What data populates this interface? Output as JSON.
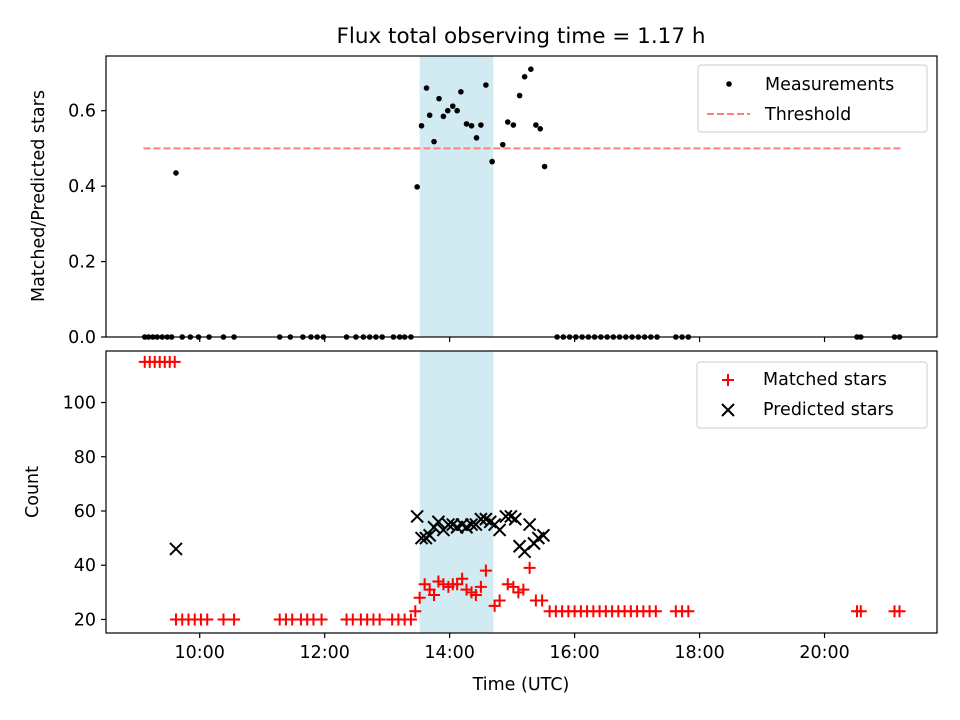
{
  "title": "Flux total observing time = 1.17 h",
  "colors": {
    "threshold": "#ff7f7f",
    "shade": "#add8e6",
    "matched": "#ff0000",
    "predicted": "#000000",
    "measurement": "#000000"
  },
  "chart_data": [
    {
      "type": "scatter",
      "xlabel": "",
      "ylabel": "Matched/Predicted stars",
      "xlim": [
        8.5,
        21.8
      ],
      "ylim": [
        0,
        0.745
      ],
      "yticks": [
        0.0,
        0.2,
        0.4,
        0.6
      ],
      "ytick_labels": [
        "0.0",
        "0.2",
        "0.4",
        "0.6"
      ],
      "shaded_span": [
        13.52,
        14.7
      ],
      "legend": {
        "position": "upper right",
        "entries": [
          "Measurements",
          "Threshold"
        ]
      },
      "threshold": {
        "name": "Threshold",
        "value": 0.5,
        "x_range": [
          9.1,
          21.25
        ]
      },
      "series": [
        {
          "name": "Measurements",
          "points": [
            [
              9.12,
              0
            ],
            [
              9.18,
              0
            ],
            [
              9.25,
              0
            ],
            [
              9.32,
              0
            ],
            [
              9.4,
              0
            ],
            [
              9.48,
              0
            ],
            [
              9.55,
              0
            ],
            [
              9.62,
              0.435
            ],
            [
              9.72,
              0
            ],
            [
              9.85,
              0
            ],
            [
              9.98,
              0
            ],
            [
              10.15,
              0
            ],
            [
              10.38,
              0
            ],
            [
              10.55,
              0
            ],
            [
              11.28,
              0
            ],
            [
              11.45,
              0
            ],
            [
              11.65,
              0
            ],
            [
              11.78,
              0
            ],
            [
              11.88,
              0
            ],
            [
              11.98,
              0
            ],
            [
              12.35,
              0
            ],
            [
              12.5,
              0
            ],
            [
              12.62,
              0
            ],
            [
              12.72,
              0
            ],
            [
              12.82,
              0
            ],
            [
              12.92,
              0
            ],
            [
              13.1,
              0
            ],
            [
              13.2,
              0
            ],
            [
              13.28,
              0
            ],
            [
              13.38,
              0
            ],
            [
              13.48,
              0.398
            ],
            [
              13.55,
              0.56
            ],
            [
              13.63,
              0.66
            ],
            [
              13.68,
              0.588
            ],
            [
              13.75,
              0.518
            ],
            [
              13.83,
              0.632
            ],
            [
              13.9,
              0.585
            ],
            [
              13.97,
              0.6
            ],
            [
              14.05,
              0.612
            ],
            [
              14.12,
              0.6
            ],
            [
              14.18,
              0.65
            ],
            [
              14.27,
              0.565
            ],
            [
              14.35,
              0.56
            ],
            [
              14.43,
              0.528
            ],
            [
              14.5,
              0.562
            ],
            [
              14.58,
              0.668
            ],
            [
              14.68,
              0.465
            ],
            [
              14.85,
              0.51
            ],
            [
              14.93,
              0.57
            ],
            [
              15.02,
              0.562
            ],
            [
              15.12,
              0.64
            ],
            [
              15.2,
              0.69
            ],
            [
              15.3,
              0.71
            ],
            [
              15.38,
              0.562
            ],
            [
              15.45,
              0.552
            ],
            [
              15.52,
              0.452
            ],
            [
              15.72,
              0
            ],
            [
              15.82,
              0
            ],
            [
              15.92,
              0
            ],
            [
              16.02,
              0
            ],
            [
              16.12,
              0
            ],
            [
              16.22,
              0
            ],
            [
              16.32,
              0
            ],
            [
              16.42,
              0
            ],
            [
              16.52,
              0
            ],
            [
              16.62,
              0
            ],
            [
              16.72,
              0
            ],
            [
              16.82,
              0
            ],
            [
              16.92,
              0
            ],
            [
              17.02,
              0
            ],
            [
              17.12,
              0
            ],
            [
              17.22,
              0
            ],
            [
              17.32,
              0
            ],
            [
              17.62,
              0
            ],
            [
              17.72,
              0
            ],
            [
              17.82,
              0
            ],
            [
              20.52,
              0
            ],
            [
              20.58,
              0
            ],
            [
              21.12,
              0
            ],
            [
              21.2,
              0
            ]
          ]
        }
      ]
    },
    {
      "type": "scatter",
      "xlabel": "Time (UTC)",
      "ylabel": "Count",
      "xlim": [
        8.5,
        21.8
      ],
      "ylim": [
        15,
        119
      ],
      "yticks": [
        20,
        40,
        60,
        80,
        100
      ],
      "ytick_labels": [
        "20",
        "40",
        "60",
        "80",
        "100"
      ],
      "xticks": [
        10,
        12,
        14,
        16,
        18,
        20
      ],
      "xtick_labels": [
        "10:00",
        "12:00",
        "14:00",
        "16:00",
        "18:00",
        "20:00"
      ],
      "shaded_span": [
        13.52,
        14.7
      ],
      "legend": {
        "position": "upper right",
        "entries": [
          "Matched stars",
          "Predicted stars"
        ]
      },
      "series": [
        {
          "name": "Matched stars",
          "marker": "+",
          "points": [
            [
              9.12,
              115
            ],
            [
              9.2,
              115
            ],
            [
              9.28,
              115
            ],
            [
              9.36,
              115
            ],
            [
              9.44,
              115
            ],
            [
              9.52,
              115
            ],
            [
              9.6,
              115
            ],
            [
              9.62,
              20
            ],
            [
              9.72,
              20
            ],
            [
              9.82,
              20
            ],
            [
              9.92,
              20
            ],
            [
              10.02,
              20
            ],
            [
              10.12,
              20
            ],
            [
              10.38,
              20
            ],
            [
              10.55,
              20
            ],
            [
              11.28,
              20
            ],
            [
              11.38,
              20
            ],
            [
              11.48,
              20
            ],
            [
              11.62,
              20
            ],
            [
              11.72,
              20
            ],
            [
              11.82,
              20
            ],
            [
              11.95,
              20
            ],
            [
              12.35,
              20
            ],
            [
              12.45,
              20
            ],
            [
              12.58,
              20
            ],
            [
              12.68,
              20
            ],
            [
              12.78,
              20
            ],
            [
              12.88,
              20
            ],
            [
              13.08,
              20
            ],
            [
              13.18,
              20
            ],
            [
              13.28,
              20
            ],
            [
              13.38,
              20
            ],
            [
              13.45,
              23
            ],
            [
              13.52,
              28
            ],
            [
              13.6,
              33
            ],
            [
              13.68,
              31
            ],
            [
              13.75,
              29
            ],
            [
              13.82,
              34
            ],
            [
              13.9,
              33
            ],
            [
              13.98,
              32
            ],
            [
              14.05,
              33
            ],
            [
              14.12,
              33
            ],
            [
              14.2,
              35
            ],
            [
              14.27,
              31
            ],
            [
              14.35,
              30
            ],
            [
              14.42,
              29
            ],
            [
              14.5,
              32
            ],
            [
              14.58,
              38
            ],
            [
              14.72,
              25
            ],
            [
              14.8,
              27
            ],
            [
              14.93,
              33
            ],
            [
              15.02,
              32
            ],
            [
              15.1,
              30
            ],
            [
              15.18,
              31
            ],
            [
              15.28,
              39
            ],
            [
              15.38,
              27
            ],
            [
              15.48,
              27
            ],
            [
              15.6,
              23
            ],
            [
              15.7,
              23
            ],
            [
              15.8,
              23
            ],
            [
              15.9,
              23
            ],
            [
              16.0,
              23
            ],
            [
              16.1,
              23
            ],
            [
              16.2,
              23
            ],
            [
              16.3,
              23
            ],
            [
              16.4,
              23
            ],
            [
              16.5,
              23
            ],
            [
              16.6,
              23
            ],
            [
              16.7,
              23
            ],
            [
              16.8,
              23
            ],
            [
              16.9,
              23
            ],
            [
              17.0,
              23
            ],
            [
              17.1,
              23
            ],
            [
              17.2,
              23
            ],
            [
              17.3,
              23
            ],
            [
              17.62,
              23
            ],
            [
              17.72,
              23
            ],
            [
              17.82,
              23
            ],
            [
              20.52,
              23
            ],
            [
              20.58,
              23
            ],
            [
              21.12,
              23
            ],
            [
              21.2,
              23
            ]
          ]
        },
        {
          "name": "Predicted stars",
          "marker": "x",
          "points": [
            [
              9.62,
              46
            ],
            [
              13.48,
              58
            ],
            [
              13.55,
              50
            ],
            [
              13.62,
              50
            ],
            [
              13.68,
              51
            ],
            [
              13.75,
              54
            ],
            [
              13.82,
              56
            ],
            [
              13.9,
              53
            ],
            [
              13.98,
              55
            ],
            [
              14.05,
              55
            ],
            [
              14.12,
              54
            ],
            [
              14.2,
              55
            ],
            [
              14.27,
              54
            ],
            [
              14.35,
              55
            ],
            [
              14.42,
              55
            ],
            [
              14.5,
              57
            ],
            [
              14.58,
              57
            ],
            [
              14.65,
              56
            ],
            [
              14.72,
              55
            ],
            [
              14.8,
              53
            ],
            [
              14.9,
              58
            ],
            [
              14.98,
              58
            ],
            [
              15.05,
              57
            ],
            [
              15.12,
              47
            ],
            [
              15.2,
              45
            ],
            [
              15.28,
              55
            ],
            [
              15.35,
              48
            ],
            [
              15.42,
              50
            ],
            [
              15.5,
              51
            ]
          ]
        }
      ]
    }
  ]
}
